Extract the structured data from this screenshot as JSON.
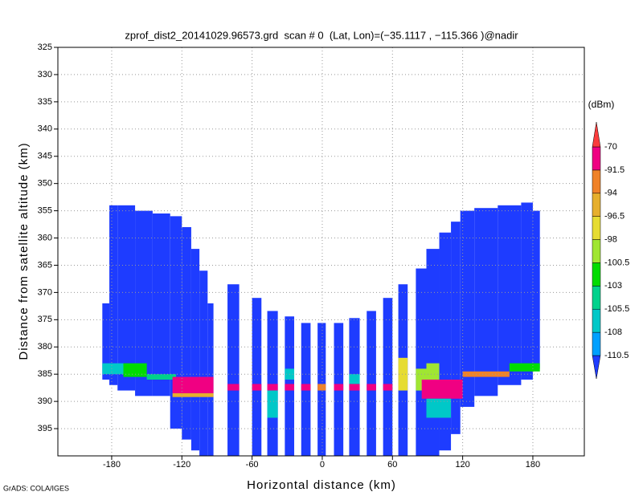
{
  "chart_data": {
    "type": "curtain",
    "title": "zprof_dist2_20141029.96573.grd  scan # 0  (Lat, Lon)=(−35.1117 , −115.366 )@nadir",
    "x_label": "Horizontal distance (km)",
    "y_label": "Distance from satellite altitude (km)",
    "footer": "GrADS: COLA/IGES",
    "colorbar_label": "(dBm)",
    "xlim": [
      -226,
      224
    ],
    "xticks": [
      -180,
      -120,
      -60,
      0,
      60,
      120,
      180
    ],
    "ylim": [
      325,
      400
    ],
    "yticks": [
      325,
      330,
      335,
      340,
      345,
      350,
      355,
      360,
      365,
      370,
      375,
      380,
      385,
      390,
      395
    ],
    "grid": true,
    "levels": [
      -110.5,
      -108,
      -105.5,
      -103,
      -100.5,
      -98,
      -96.5,
      -94,
      -91.5,
      -70
    ],
    "colors": [
      "#1e3cff",
      "#00a0ff",
      "#00c8c8",
      "#00d28c",
      "#00dc00",
      "#a0e632",
      "#e6dc32",
      "#e6af2d",
      "#f08228",
      "#f00082",
      "#fa3c3c"
    ],
    "cells": [
      {
        "x": [
          -188,
          -182
        ],
        "y": [
          372,
          386
        ],
        "value": -115
      },
      {
        "x": [
          -182,
          -175
        ],
        "y": [
          354,
          387
        ],
        "value": -115
      },
      {
        "x": [
          -175,
          -160
        ],
        "y": [
          354,
          388
        ],
        "value": -115
      },
      {
        "x": [
          -160,
          -145
        ],
        "y": [
          355,
          389
        ],
        "value": -115
      },
      {
        "x": [
          -145,
          -130
        ],
        "y": [
          355.5,
          389
        ],
        "value": -115
      },
      {
        "x": [
          -130,
          -120
        ],
        "y": [
          356,
          395
        ],
        "value": -115
      },
      {
        "x": [
          -120,
          -112
        ],
        "y": [
          358,
          397
        ],
        "value": -115
      },
      {
        "x": [
          -112,
          -105
        ],
        "y": [
          362,
          399
        ],
        "value": -115
      },
      {
        "x": [
          -105,
          -98
        ],
        "y": [
          366,
          400
        ],
        "value": -115
      },
      {
        "x": [
          -98,
          -93
        ],
        "y": [
          372,
          400
        ],
        "value": -115
      },
      {
        "x": [
          -81,
          -71
        ],
        "y": [
          368.5,
          400
        ],
        "value": -115
      },
      {
        "x": [
          -60,
          -52
        ],
        "y": [
          371,
          400
        ],
        "value": -115
      },
      {
        "x": [
          -47,
          -38
        ],
        "y": [
          373.4,
          400
        ],
        "value": -115
      },
      {
        "x": [
          -32,
          -24
        ],
        "y": [
          374.4,
          400
        ],
        "value": -115
      },
      {
        "x": [
          -18,
          -10
        ],
        "y": [
          375.6,
          400
        ],
        "value": -115
      },
      {
        "x": [
          -4,
          3
        ],
        "y": [
          375.6,
          400
        ],
        "value": -115
      },
      {
        "x": [
          10,
          18
        ],
        "y": [
          375.6,
          400
        ],
        "value": -115
      },
      {
        "x": [
          23,
          32
        ],
        "y": [
          374.7,
          400
        ],
        "value": -115
      },
      {
        "x": [
          38,
          46
        ],
        "y": [
          373.4,
          400
        ],
        "value": -115
      },
      {
        "x": [
          52,
          60
        ],
        "y": [
          371,
          400
        ],
        "value": -115
      },
      {
        "x": [
          65,
          73
        ],
        "y": [
          368.5,
          400
        ],
        "value": -115
      },
      {
        "x": [
          80,
          89
        ],
        "y": [
          365.6,
          400
        ],
        "value": -115
      },
      {
        "x": [
          89,
          100
        ],
        "y": [
          362,
          400
        ],
        "value": -115
      },
      {
        "x": [
          100,
          110
        ],
        "y": [
          359,
          399
        ],
        "value": -115
      },
      {
        "x": [
          110,
          118
        ],
        "y": [
          357,
          396
        ],
        "value": -115
      },
      {
        "x": [
          118,
          130
        ],
        "y": [
          355,
          391
        ],
        "value": -115
      },
      {
        "x": [
          130,
          150
        ],
        "y": [
          354.5,
          389
        ],
        "value": -115
      },
      {
        "x": [
          150,
          170
        ],
        "y": [
          354,
          387
        ],
        "value": -115
      },
      {
        "x": [
          170,
          180
        ],
        "y": [
          353.5,
          386
        ],
        "value": -115
      },
      {
        "x": [
          180,
          186
        ],
        "y": [
          355,
          384
        ],
        "value": -115
      },
      {
        "x": [
          -188,
          -170
        ],
        "y": [
          383,
          385
        ],
        "value": -107
      },
      {
        "x": [
          -170,
          -150
        ],
        "y": [
          383,
          385.5
        ],
        "value": -101
      },
      {
        "x": [
          -150,
          -125
        ],
        "y": [
          385,
          386
        ],
        "value": -105
      },
      {
        "x": [
          -128,
          -93
        ],
        "y": [
          385.5,
          388.5
        ],
        "value": -80
      },
      {
        "x": [
          -128,
          -93
        ],
        "y": [
          388.5,
          389.2
        ],
        "value": -95
      },
      {
        "x": [
          -81,
          -71
        ],
        "y": [
          386.8,
          388
        ],
        "value": -80
      },
      {
        "x": [
          -60,
          -52
        ],
        "y": [
          386.8,
          388
        ],
        "value": -80
      },
      {
        "x": [
          -47,
          -38
        ],
        "y": [
          386.8,
          388
        ],
        "value": -80
      },
      {
        "x": [
          -47,
          -38
        ],
        "y": [
          388,
          393
        ],
        "value": -107
      },
      {
        "x": [
          -32,
          -24
        ],
        "y": [
          384,
          386
        ],
        "value": -107
      },
      {
        "x": [
          -32,
          -24
        ],
        "y": [
          386.8,
          388
        ],
        "value": -80
      },
      {
        "x": [
          -18,
          -10
        ],
        "y": [
          386.8,
          388
        ],
        "value": -80
      },
      {
        "x": [
          -4,
          3
        ],
        "y": [
          386.8,
          388
        ],
        "value": -93
      },
      {
        "x": [
          10,
          18
        ],
        "y": [
          386.8,
          388
        ],
        "value": -80
      },
      {
        "x": [
          23,
          32
        ],
        "y": [
          385,
          387
        ],
        "value": -107
      },
      {
        "x": [
          23,
          32
        ],
        "y": [
          386.8,
          388
        ],
        "value": -80
      },
      {
        "x": [
          38,
          46
        ],
        "y": [
          386.8,
          388
        ],
        "value": -80
      },
      {
        "x": [
          52,
          60
        ],
        "y": [
          386.8,
          388
        ],
        "value": -80
      },
      {
        "x": [
          65,
          73
        ],
        "y": [
          382,
          388
        ],
        "value": -97
      },
      {
        "x": [
          80,
          89
        ],
        "y": [
          384,
          388
        ],
        "value": -100
      },
      {
        "x": [
          89,
          100
        ],
        "y": [
          383,
          386
        ],
        "value": -99
      },
      {
        "x": [
          85,
          120
        ],
        "y": [
          386,
          389.5
        ],
        "value": -80
      },
      {
        "x": [
          120,
          160
        ],
        "y": [
          384.5,
          385.5
        ],
        "value": -93
      },
      {
        "x": [
          160,
          186
        ],
        "y": [
          383,
          384.5
        ],
        "value": -102
      },
      {
        "x": [
          89,
          110
        ],
        "y": [
          389.5,
          393
        ],
        "value": -107
      }
    ]
  }
}
